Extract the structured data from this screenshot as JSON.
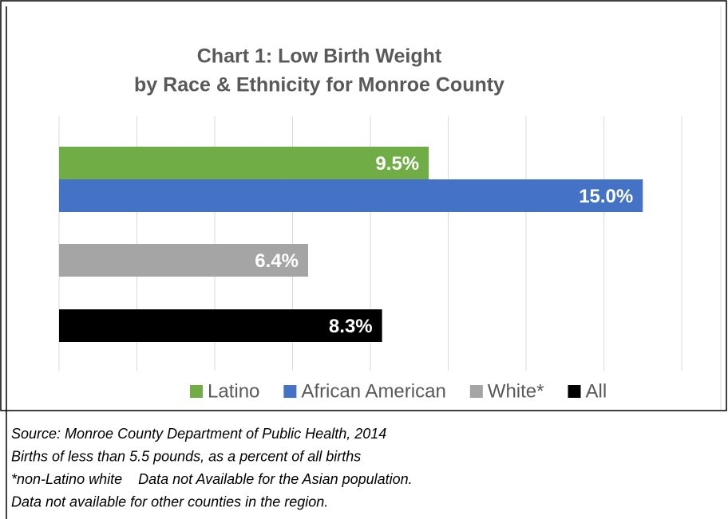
{
  "chart_data": {
    "type": "bar",
    "orientation": "horizontal",
    "title": [
      "Chart 1: Low Birth Weight",
      "by Race & Ethnicity  for Monroe County"
    ],
    "series": [
      {
        "name": "Latino",
        "color": "#70ad47",
        "values": [
          9.5
        ],
        "value_labels": [
          "9.5%"
        ]
      },
      {
        "name": "African American",
        "color": "#4472c4",
        "values": [
          15.0
        ],
        "value_labels": [
          "15.0%"
        ]
      },
      {
        "name": "White*",
        "color": "#a5a5a5",
        "values": [
          6.4
        ],
        "value_labels": [
          "6.4%"
        ]
      },
      {
        "name": "All",
        "color": "#000000",
        "values": [
          8.3
        ],
        "value_labels": [
          "8.3%"
        ]
      }
    ],
    "xlim": [
      0,
      16
    ],
    "xticks": [
      0,
      2,
      4,
      6,
      8,
      10,
      12,
      14,
      16
    ],
    "grid": true,
    "legend": "bottom",
    "notes": [
      "Source: Monroe County Department of Public Health, 2014",
      "Births of less than 5.5 pounds, as a percent of all births",
      "*non-Latino white    Data not Available for the Asian population.",
      "Data not available for other counties in the region."
    ]
  }
}
